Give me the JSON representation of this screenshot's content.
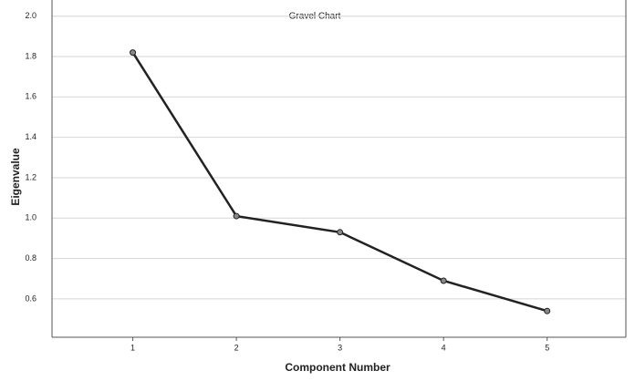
{
  "chart_data": {
    "type": "line",
    "title": "Gravel Chart",
    "x_label": "Component Number",
    "y_label": "Eigenvalue",
    "x": [
      1,
      2,
      3,
      4,
      5
    ],
    "series": [
      {
        "name": "Eigenvalue",
        "color": "#222222",
        "values": [
          1.82,
          1.01,
          0.93,
          0.69,
          0.54
        ]
      }
    ],
    "xlim": [
      0.22,
      5.76
    ],
    "xticks": [
      1,
      2,
      3,
      4,
      5
    ],
    "ylim": [
      0.41,
      2.08
    ],
    "yticks": [
      0.6,
      0.8,
      {
        "value": 1,
        "label": "1.0"
      },
      1.2,
      1.4,
      1.6,
      1.8,
      {
        "value": 2,
        "label": "2.0"
      }
    ],
    "grid": true
  }
}
